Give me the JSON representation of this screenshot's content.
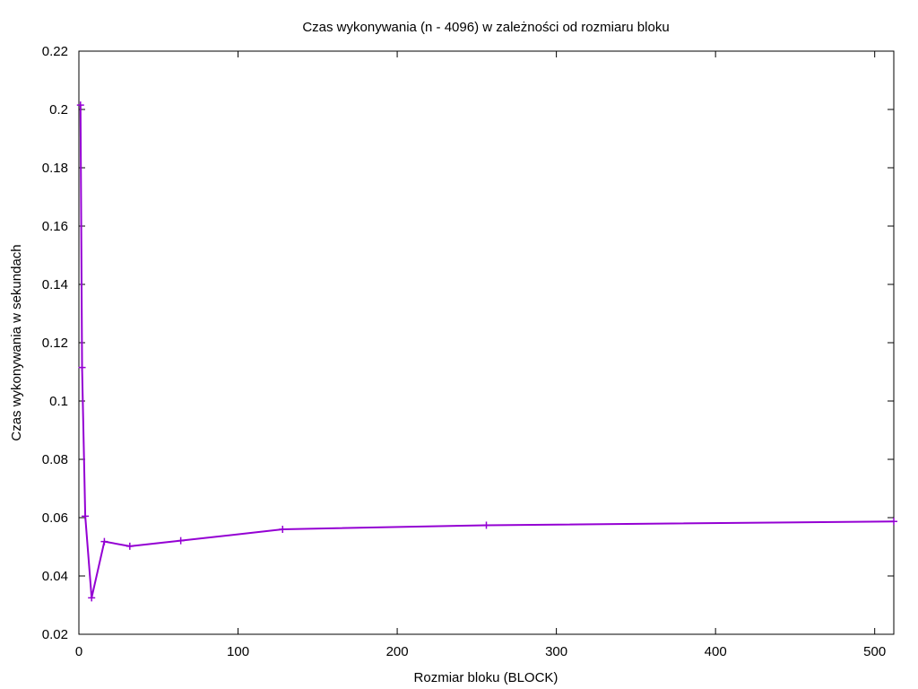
{
  "chart_data": {
    "type": "line",
    "title": "Czas wykonywania (n - 4096) w zależności od rozmiaru bloku",
    "xlabel": "Rozmiar bloku (BLOCK)",
    "ylabel": "Czas wykonywania w sekundach",
    "xlim": [
      0,
      512
    ],
    "ylim": [
      0.02,
      0.22
    ],
    "xticks": [
      0,
      100,
      200,
      300,
      400,
      500
    ],
    "yticks": [
      0.02,
      0.04,
      0.06,
      0.08,
      0.1,
      0.12,
      0.14,
      0.16,
      0.18,
      0.2,
      0.22
    ],
    "xtick_labels": [
      "0",
      "100",
      "200",
      "300",
      "400",
      "500"
    ],
    "ytick_labels": [
      "0.02",
      "0.04",
      "0.06",
      "0.08",
      "0.1",
      "0.12",
      "0.14",
      "0.16",
      "0.18",
      "0.2",
      "0.22"
    ],
    "grid": false,
    "series": [
      {
        "color": "#9400d3",
        "marker": "plus",
        "x": [
          1,
          2,
          4,
          8,
          16,
          32,
          64,
          128,
          256,
          512
        ],
        "y": [
          0.2015,
          0.1115,
          0.0605,
          0.0325,
          0.0518,
          0.0502,
          0.0521,
          0.056,
          0.0574,
          0.0587
        ]
      }
    ]
  }
}
